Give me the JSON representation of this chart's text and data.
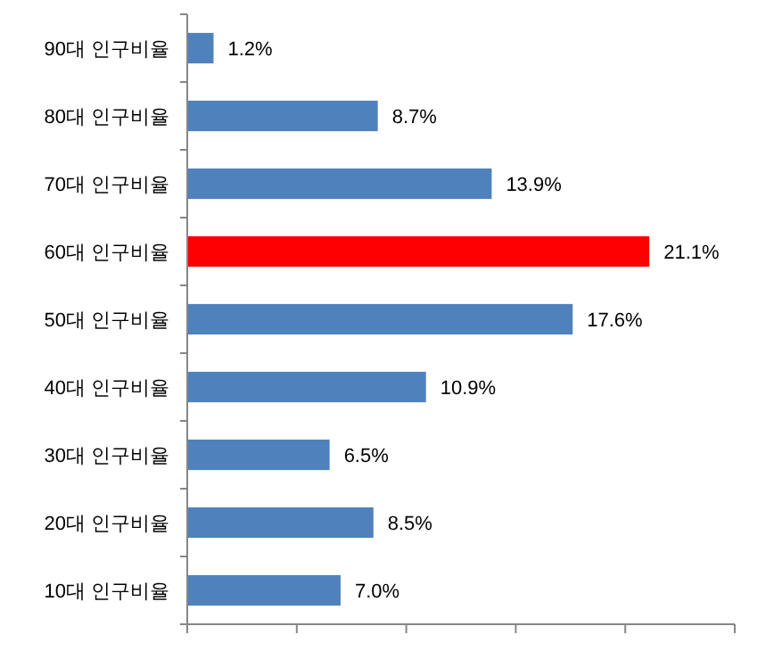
{
  "chart_data": {
    "type": "bar",
    "orientation": "horizontal",
    "categories": [
      "90대 인구비율",
      "80대 인구비율",
      "70대 인구비율",
      "60대 인구비율",
      "50대 인구비율",
      "40대 인구비율",
      "30대 인구비율",
      "20대 인구비율",
      "10대 인구비율"
    ],
    "values": [
      1.2,
      8.7,
      13.9,
      21.1,
      17.6,
      10.9,
      6.5,
      8.5,
      7.0
    ],
    "colors": [
      "#4f81bd",
      "#4f81bd",
      "#4f81bd",
      "#ff0000",
      "#4f81bd",
      "#4f81bd",
      "#4f81bd",
      "#4f81bd",
      "#4f81bd"
    ],
    "value_labels": [
      "1.2%",
      "8.7%",
      "13.9%",
      "21.1%",
      "17.6%",
      "10.9%",
      "6.5%",
      "8.5%",
      "7.0%"
    ],
    "xlim": [
      0,
      25
    ],
    "xticks": [
      {
        "value": 0,
        "label": null
      },
      {
        "value": 5,
        "label": null
      },
      {
        "value": 10,
        "label": null
      },
      {
        "value": 15,
        "label": null
      },
      {
        "value": 20,
        "label": null
      },
      {
        "value": 25,
        "label": null
      }
    ],
    "grid": false
  }
}
